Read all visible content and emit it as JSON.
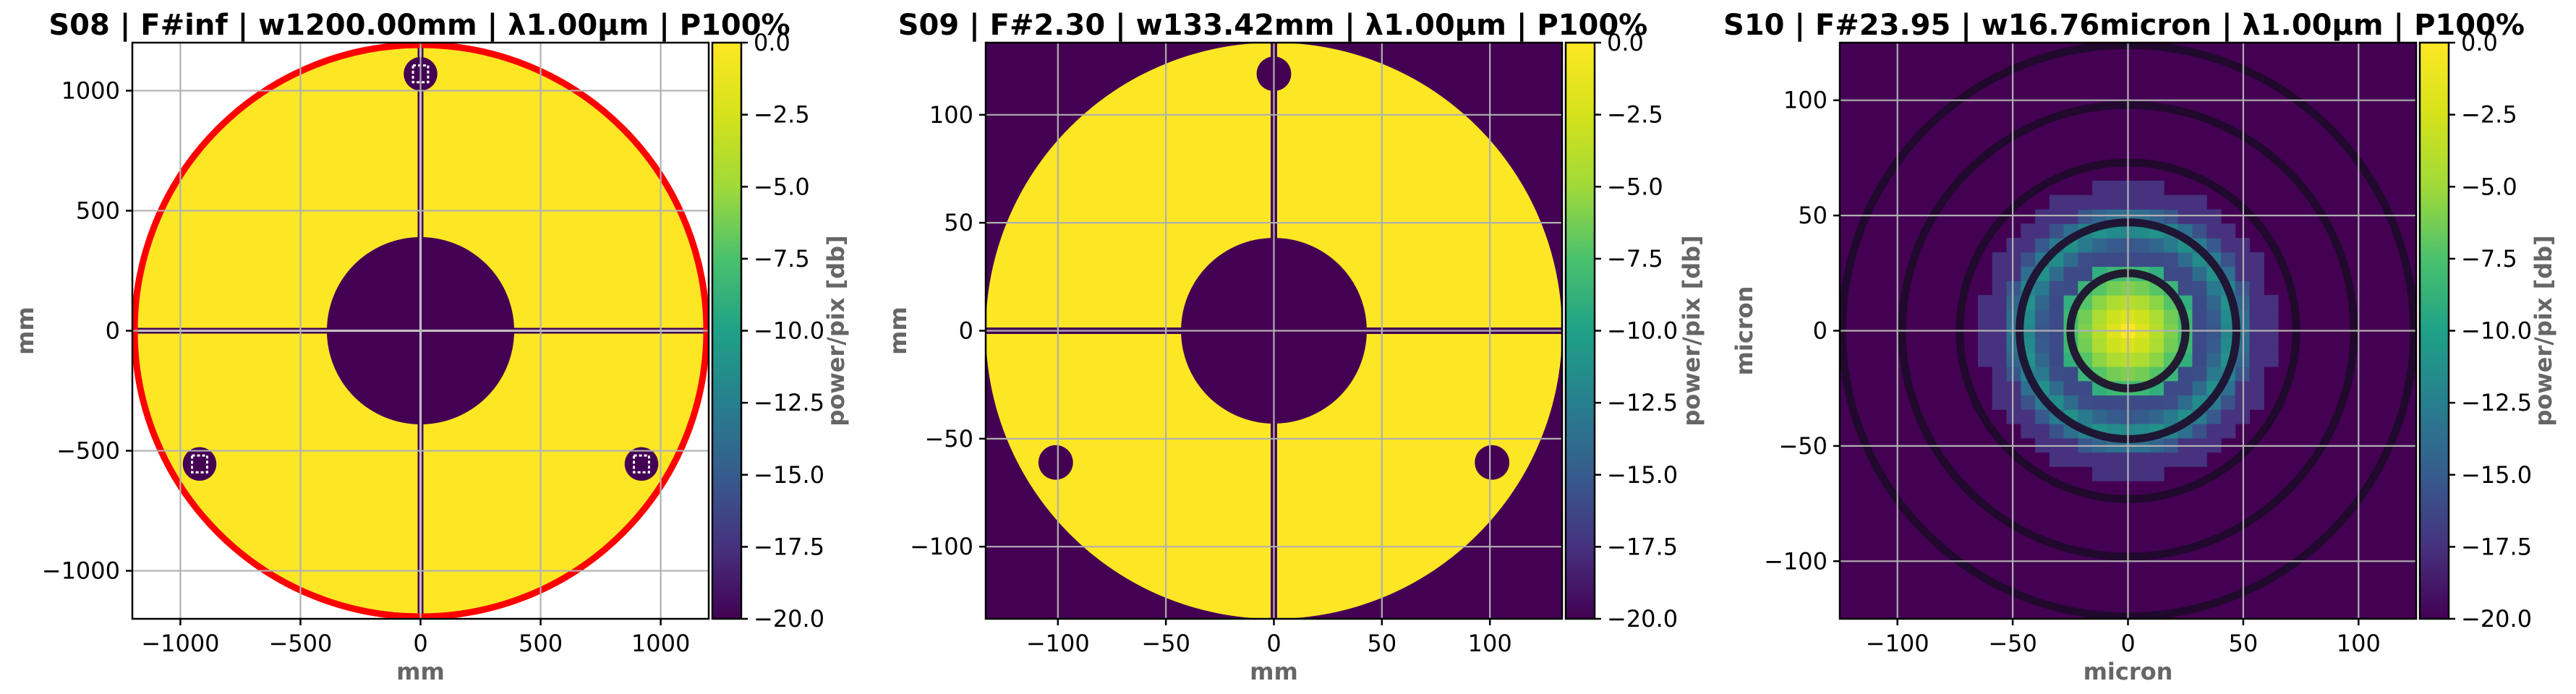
{
  "colors": {
    "yellow": "#fde725",
    "purple": "#440154",
    "ring": "#ff0000",
    "dark_ring": "#1e0a2a",
    "grid": "#b0b0b0",
    "label": "#666666"
  },
  "colorbar": {
    "label": "power/pix [db]",
    "ticks": [
      "0.0",
      "−2.5",
      "−5.0",
      "−7.5",
      "−10.0",
      "−12.5",
      "−15.0",
      "−17.5",
      "−20.0"
    ],
    "range": [
      -20,
      0
    ]
  },
  "chart_data": [
    {
      "type": "heatmap",
      "title": "S08 | F#inf | w1200.00mm | λ1.00μm | P100%",
      "xlabel": "mm",
      "ylabel": "mm",
      "xlim": [
        -1200,
        1200
      ],
      "ylim": [
        -1200,
        1200
      ],
      "x_ticks": [
        "−1000",
        "−500",
        "0",
        "500",
        "1000"
      ],
      "x_tick_values": [
        -1000,
        -500,
        0,
        500,
        1000
      ],
      "y_ticks": [
        "1000",
        "500",
        "0",
        "−500",
        "−1000"
      ],
      "y_tick_values": [
        1000,
        500,
        0,
        -500,
        -1000
      ],
      "grid": true,
      "colorbar_label": "power/pix [db]",
      "description_values": {
        "aperture_radius": 1200,
        "obscuration_radius": 390,
        "spider_half_width": 12,
        "pad_positions": [
          [
            0,
            1070
          ],
          [
            -920,
            -555
          ],
          [
            920,
            -555
          ]
        ],
        "pad_radius": 70,
        "outline_color": "red"
      }
    },
    {
      "type": "heatmap",
      "title": "S09 | F#2.30 | w133.42mm | λ1.00μm | P100%",
      "xlabel": "mm",
      "ylabel": "mm",
      "xlim": [
        -133.42,
        133.42
      ],
      "ylim": [
        -133.42,
        133.42
      ],
      "x_ticks": [
        "−100",
        "−50",
        "0",
        "50",
        "100"
      ],
      "x_tick_values": [
        -100,
        -50,
        0,
        50,
        100
      ],
      "y_ticks": [
        "100",
        "50",
        "0",
        "−50",
        "−100"
      ],
      "y_tick_values": [
        100,
        50,
        0,
        -50,
        -100
      ],
      "grid": true,
      "colorbar_label": "power/pix [db]",
      "description_values": {
        "aperture_radius": 133.42,
        "obscuration_radius": 43,
        "spider_half_width": 1.5,
        "pad_positions": [
          [
            0,
            119
          ],
          [
            -101,
            -61
          ],
          [
            101,
            -61
          ]
        ],
        "pad_radius": 8
      }
    },
    {
      "type": "heatmap",
      "title": "S10 | F#23.95 | w16.76micron | λ1.00μm | P100%",
      "xlabel": "micron",
      "ylabel": "micron",
      "xlim": [
        -125,
        125
      ],
      "ylim": [
        -125,
        125
      ],
      "x_ticks": [
        "−100",
        "−50",
        "0",
        "50",
        "100"
      ],
      "x_tick_values": [
        -100,
        -50,
        0,
        50,
        100
      ],
      "y_ticks": [
        "100",
        "50",
        "0",
        "−50",
        "−100"
      ],
      "y_tick_values": [
        100,
        50,
        0,
        -50,
        -100
      ],
      "grid": true,
      "colorbar_label": "power/pix [db]",
      "description_values": {
        "ring_radii": [
          25,
          47,
          73,
          98,
          124
        ],
        "pixel_size": 6.2,
        "peak_db": 0,
        "first_ring_radius": 47
      }
    }
  ]
}
